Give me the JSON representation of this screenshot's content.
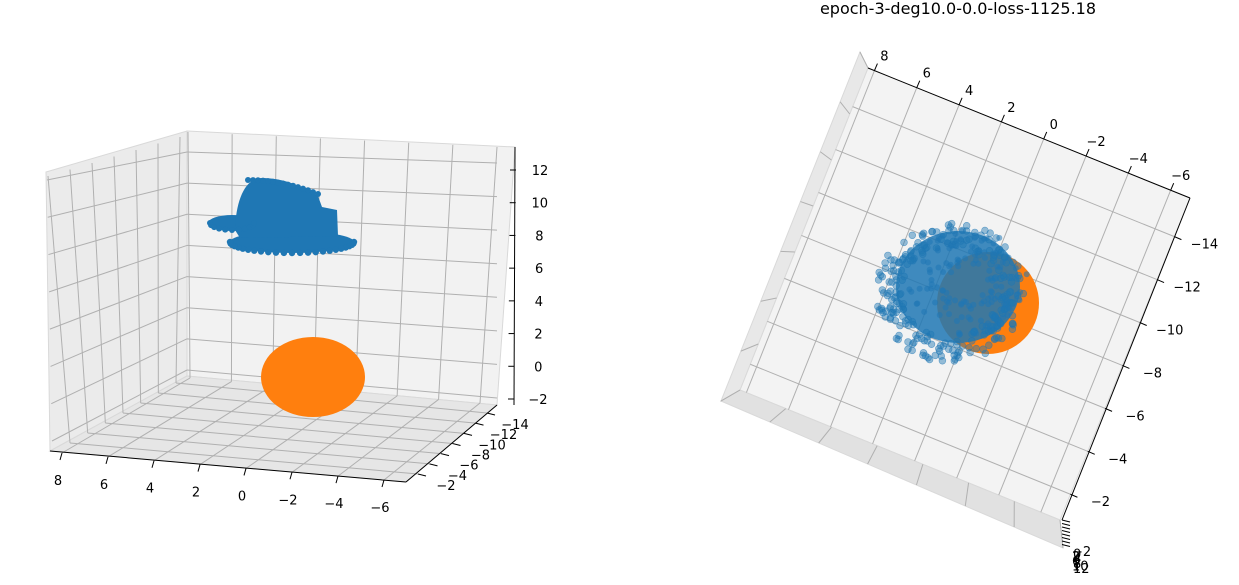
{
  "figure": {
    "title": "epoch-3-deg10.0-0.0-loss-1125.18"
  },
  "colors": {
    "series_blue": "#1f77b4",
    "series_orange": "#ff7f0e",
    "pane_light": "#f2f2f2",
    "pane_dark": "#e6e6e6",
    "grid": "#b0b0b0"
  },
  "chart_data": [
    {
      "type": "scatter",
      "projection": "3d",
      "title": "",
      "grid": true,
      "axes": {
        "x": {
          "ticks": [
            "8",
            "6",
            "4",
            "2",
            "0",
            "−2",
            "−4",
            "−6"
          ]
        },
        "y": {
          "ticks": [
            "−2",
            "−4",
            "−6",
            "−8",
            "−10",
            "−12",
            "−14"
          ]
        },
        "z": {
          "ticks": [
            "−2",
            "0",
            "2",
            "4",
            "6",
            "8",
            "10",
            "12"
          ]
        }
      },
      "series": [
        {
          "color": "#1f77b4",
          "shape": "hat-like point cloud",
          "center": {
            "x": 3,
            "y": -8,
            "z": 9
          }
        },
        {
          "color": "#ff7f0e",
          "shape": "sphere",
          "center": {
            "x": 1,
            "y": -8,
            "z": 0
          },
          "radius": 2
        }
      ]
    },
    {
      "type": "scatter",
      "projection": "3d",
      "title": "epoch-3-deg10.0-0.0-loss-1125.18",
      "grid": true,
      "axes": {
        "x": {
          "ticks": [
            "8",
            "6",
            "4",
            "2",
            "0",
            "−2",
            "−4",
            "−6"
          ]
        },
        "y": {
          "ticks": [
            "−14",
            "−12",
            "−10",
            "−8",
            "−6",
            "−4",
            "−2"
          ]
        },
        "z": {
          "ticks": [
            "−2",
            "0",
            "2",
            "4",
            "6",
            "8",
            "10",
            "12"
          ]
        }
      },
      "series": [
        {
          "color": "#1f77b4",
          "shape": "ring point cloud (semi-transparent)"
        },
        {
          "color": "#ff7f0e",
          "shape": "sphere"
        }
      ]
    }
  ]
}
